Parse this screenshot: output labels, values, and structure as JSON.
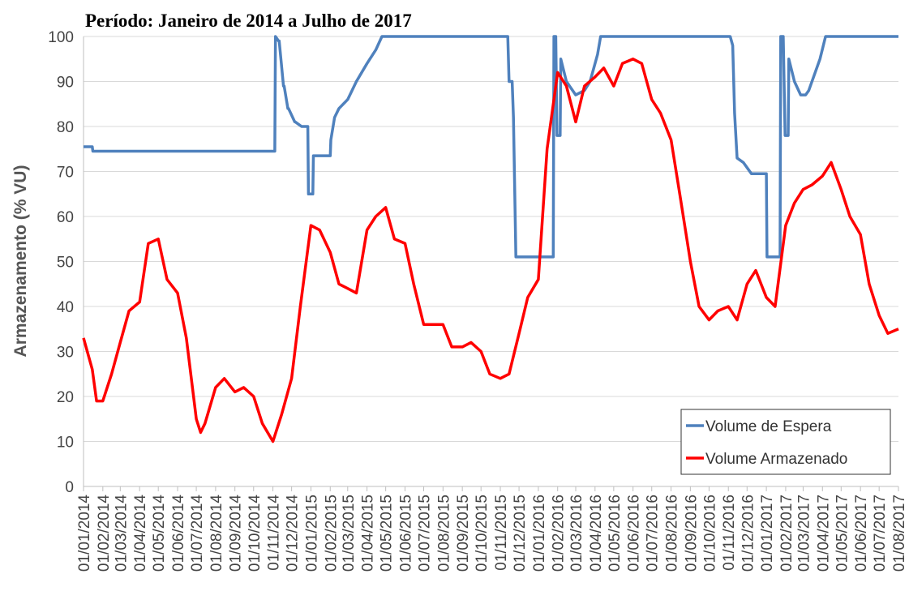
{
  "chart_data": {
    "type": "line",
    "title": "Período: Janeiro de 2014 a Julho de 2017",
    "y_label": "Armazenamento (% VU)",
    "xlim": [
      "01/01/2014",
      "01/08/2017"
    ],
    "xticks": [
      "01/01/2014",
      "01/02/2014",
      "01/03/2014",
      "01/04/2014",
      "01/05/2014",
      "01/06/2014",
      "01/07/2014",
      "01/08/2014",
      "01/09/2014",
      "01/10/2014",
      "01/11/2014",
      "01/12/2014",
      "01/01/2015",
      "01/02/2015",
      "01/03/2015",
      "01/04/2015",
      "01/05/2015",
      "01/06/2015",
      "01/07/2015",
      "01/08/2015",
      "01/09/2015",
      "01/10/2015",
      "01/11/2015",
      "01/12/2015",
      "01/01/2016",
      "01/02/2016",
      "01/03/2016",
      "01/04/2016",
      "01/05/2016",
      "01/06/2016",
      "01/07/2016",
      "01/08/2016",
      "01/09/2016",
      "01/10/2016",
      "01/11/2016",
      "01/12/2016",
      "01/01/2017",
      "01/02/2017",
      "01/03/2017",
      "01/04/2017",
      "01/05/2017",
      "01/06/2017",
      "01/07/2017",
      "01/08/2017"
    ],
    "ylim": [
      0,
      100
    ],
    "yticks": [
      0,
      10,
      20,
      30,
      40,
      50,
      60,
      70,
      80,
      90,
      100
    ],
    "grid": true,
    "legend": "lower right",
    "series": [
      {
        "name": "Volume de Espera",
        "color": "#4f81bd",
        "x": [
          "01/01/2014",
          "15/01/2014",
          "16/01/2014",
          "04/11/2014",
          "05/11/2014",
          "10/11/2014",
          "11/11/2014",
          "18/11/2014",
          "19/11/2014",
          "25/11/2014",
          "26/11/2014",
          "06/12/2014",
          "07/12/2014",
          "17/12/2014",
          "18/12/2014",
          "27/12/2014",
          "28/12/2014",
          "04/01/2015",
          "05/01/2015",
          "01/02/2015",
          "02/02/2015",
          "08/02/2015",
          "15/02/2015",
          "01/03/2015",
          "15/03/2015",
          "01/04/2015",
          "15/04/2015",
          "25/04/2015",
          "13/11/2015",
          "15/11/2015",
          "20/11/2015",
          "22/11/2015",
          "26/11/2015",
          "25/01/2016",
          "26/01/2016",
          "29/01/2016",
          "31/01/2016",
          "05/02/2016",
          "06/02/2016",
          "15/02/2016",
          "01/03/2016",
          "15/03/2016",
          "24/03/2016",
          "05/04/2016",
          "10/04/2016",
          "04/11/2016",
          "08/11/2016",
          "11/11/2016",
          "15/11/2016",
          "25/11/2016",
          "08/12/2016",
          "01/01/2017",
          "02/01/2017",
          "23/01/2017",
          "24/01/2017",
          "28/01/2017",
          "31/01/2017",
          "05/02/2017",
          "06/02/2017",
          "15/02/2017",
          "25/02/2017",
          "05/03/2017",
          "10/03/2017",
          "28/03/2017",
          "06/04/2017",
          "01/08/2017"
        ],
        "values": [
          75.5,
          75.5,
          74.5,
          74.5,
          100,
          99,
          99,
          89,
          89,
          84,
          84,
          81,
          81,
          80,
          80,
          80,
          65,
          65,
          73.5,
          73.5,
          77,
          82,
          84,
          86,
          90,
          94,
          97,
          100,
          100,
          90,
          90,
          82,
          51,
          51,
          100,
          100,
          78,
          78,
          95,
          90,
          87,
          88,
          90,
          96,
          100,
          100,
          98,
          83,
          73,
          72,
          69.5,
          69.5,
          51,
          51,
          100,
          100,
          78,
          78,
          95,
          90,
          87,
          87,
          88,
          95,
          100,
          100
        ]
      },
      {
        "name": "Volume Armazenado",
        "color": "#ff0000",
        "x": [
          "01/01/2014",
          "15/01/2014",
          "22/01/2014",
          "01/02/2014",
          "15/02/2014",
          "01/03/2014",
          "15/03/2014",
          "01/04/2014",
          "15/04/2014",
          "01/05/2014",
          "15/05/2014",
          "01/06/2014",
          "15/06/2014",
          "01/07/2014",
          "08/07/2014",
          "15/07/2014",
          "01/08/2014",
          "15/08/2014",
          "01/09/2014",
          "15/09/2014",
          "01/10/2014",
          "15/10/2014",
          "01/11/2014",
          "15/11/2014",
          "01/12/2014",
          "15/12/2014",
          "01/01/2015",
          "15/01/2015",
          "01/02/2015",
          "15/02/2015",
          "01/03/2015",
          "15/03/2015",
          "01/04/2015",
          "15/04/2015",
          "01/05/2015",
          "15/05/2015",
          "01/06/2015",
          "15/06/2015",
          "01/07/2015",
          "15/07/2015",
          "01/08/2015",
          "15/08/2015",
          "01/09/2015",
          "15/09/2015",
          "01/10/2015",
          "15/10/2015",
          "01/11/2015",
          "15/11/2015",
          "01/12/2015",
          "15/12/2015",
          "01/01/2016",
          "15/01/2016",
          "01/02/2016",
          "15/02/2016",
          "01/03/2016",
          "15/03/2016",
          "01/04/2016",
          "15/04/2016",
          "01/05/2016",
          "15/05/2016",
          "01/06/2016",
          "15/06/2016",
          "01/07/2016",
          "15/07/2016",
          "01/08/2016",
          "15/08/2016",
          "01/09/2016",
          "15/09/2016",
          "01/10/2016",
          "15/10/2016",
          "01/11/2016",
          "15/11/2016",
          "01/12/2016",
          "15/12/2016",
          "01/01/2017",
          "15/01/2017",
          "01/02/2017",
          "15/02/2017",
          "01/03/2017",
          "15/03/2017",
          "01/04/2017",
          "15/04/2017",
          "01/05/2017",
          "15/05/2017",
          "01/06/2017",
          "15/06/2017",
          "01/07/2017",
          "15/07/2017",
          "01/08/2017"
        ],
        "values": [
          33,
          26,
          19,
          19,
          25,
          32,
          39,
          41,
          54,
          55,
          46,
          43,
          33,
          15,
          12,
          14,
          22,
          24,
          21,
          22,
          20,
          14,
          10,
          16,
          24,
          40,
          58,
          57,
          52,
          45,
          44,
          43,
          57,
          60,
          62,
          55,
          54,
          45,
          36,
          36,
          36,
          31,
          31,
          32,
          30,
          25,
          24,
          25,
          34,
          42,
          46,
          75,
          92,
          89,
          81,
          89,
          91,
          93,
          89,
          94,
          95,
          94,
          86,
          83,
          77,
          65,
          50,
          40,
          37,
          39,
          40,
          37,
          45,
          48,
          42,
          40,
          58,
          63,
          66,
          67,
          69,
          72,
          66,
          60,
          56,
          45,
          38,
          34,
          35
        ]
      }
    ]
  }
}
